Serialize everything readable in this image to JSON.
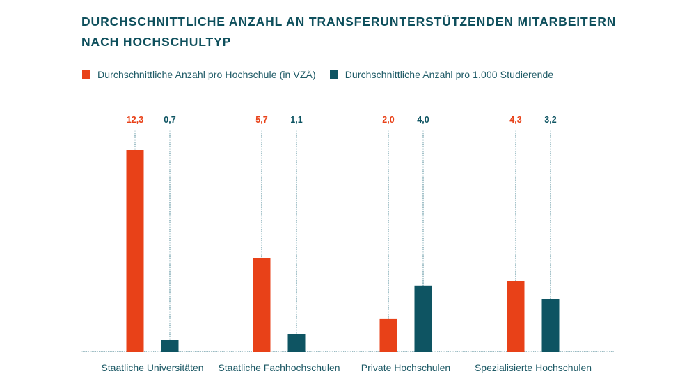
{
  "chart_data": {
    "type": "bar",
    "title": "DURCHSCHNITTLICHE ANZAHL AN TRANSFERUNTERSTÜTZENDEN MITARBEITERN NACH HOCHSCHULTYP",
    "title_lines": [
      "DURCHSCHNITTLICHE ANZAHL AN TRANSFERUNTERSTÜTZENDEN MITARBEITERN",
      "NACH HOCHSCHULTYP"
    ],
    "xlabel": "",
    "ylabel": "",
    "ylim": [
      0,
      12.3
    ],
    "grid": false,
    "legend_position": "top-left",
    "categories": [
      "Staatliche Universitäten",
      "Staatliche Fachhochschulen",
      "Private Hochschulen",
      "Spezialisierte Hochschulen"
    ],
    "series": [
      {
        "name": "Durchschnittliche Anzahl pro Hochschule (in VZÄ)",
        "color": "#e84118",
        "values": [
          12.3,
          5.7,
          2.0,
          4.3
        ],
        "labels": [
          "12,3",
          "5,7",
          "2,0",
          "4,3"
        ]
      },
      {
        "name": "Durchschnittliche Anzahl pro 1.000 Studierende",
        "color": "#0e5462",
        "values": [
          0.7,
          1.1,
          4.0,
          3.2
        ],
        "labels": [
          "0,7",
          "1,1",
          "4,0",
          "3,2"
        ]
      }
    ]
  },
  "colors": {
    "title": "#0e4f5c",
    "text": "#1e5a66",
    "baseline": "#5a8f9c",
    "leader": "#6f9eaa"
  }
}
